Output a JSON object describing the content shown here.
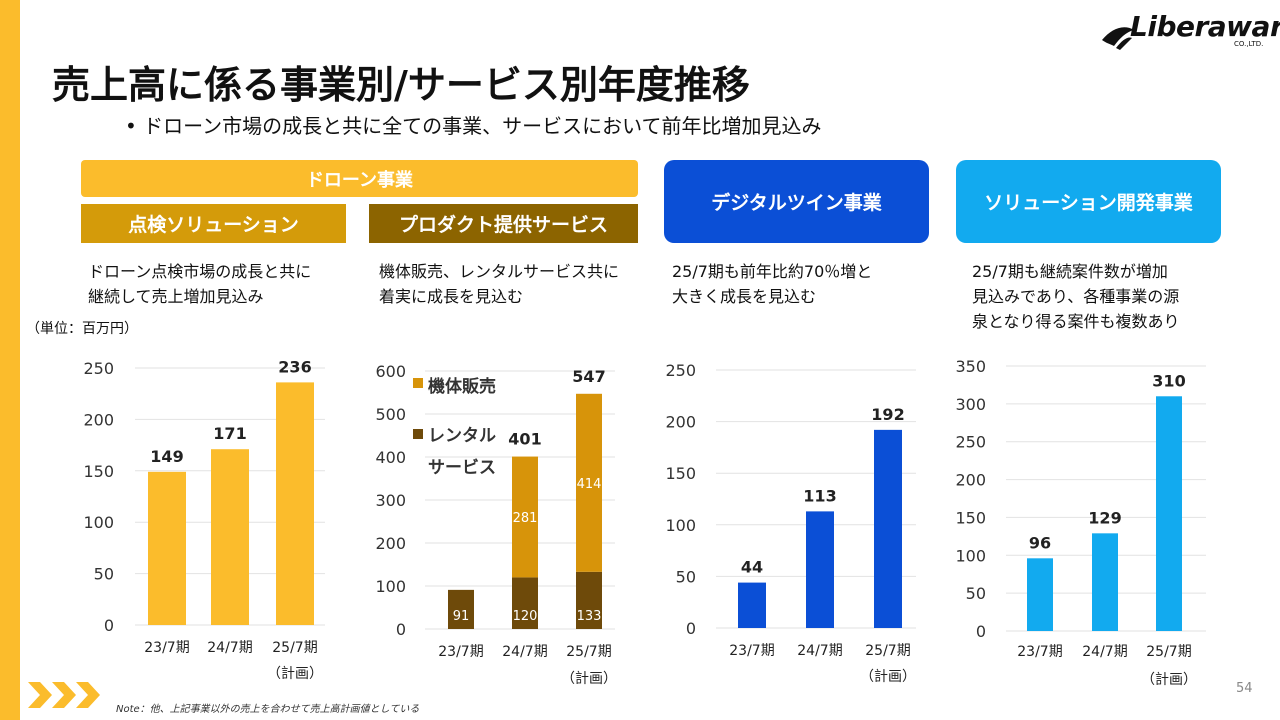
{
  "header": {
    "title": "売上高に係る事業別/サービス別年度推移",
    "subtitle": "•  ドローン市場の成長と共に全ての事業、サービスにおいて前年比増加見込み",
    "logo_text": "Liberaware",
    "logo_sub": "CO.,LTD."
  },
  "segments": {
    "drone": "ドローン事業",
    "inspection": "点検ソリューション",
    "product": "プロダクト提供サービス",
    "digital_twin": "デジタルツイン事業",
    "solution_dev": "ソリューション開発事業"
  },
  "descriptions": {
    "inspection": [
      "ドローン点検市場の成長と共に",
      "継続して売上増加見込み"
    ],
    "product": [
      "機体販売、レンタルサービス共に",
      "着実に成長を見込む"
    ],
    "digital_twin": [
      "25/7期も前年比約70％増と",
      "大きく成長を見込む"
    ],
    "solution_dev": [
      "25/7期も継続案件数が増加",
      "見込みであり、各種事業の源",
      "泉となり得る案件も複数あり"
    ]
  },
  "unit_label": "（単位：百万円）",
  "footnote": "Note：他、上記事業以外の売上を合わせて売上高計画値としている",
  "page_number": "54",
  "colors": {
    "yellow": "#FBBC2C",
    "drone_header": "#FBBC2C",
    "inspection_header": "#D49B0A",
    "product_header": "#8C6400",
    "digital_twin": "#0B4FD6",
    "solution_dev": "#12AAEF",
    "kitai": "#D7940A",
    "rental": "#6E4A0A"
  },
  "chart_data": [
    {
      "type": "bar",
      "name": "点検ソリューション",
      "categories": [
        "23/7期",
        "24/7期",
        "25/7期"
      ],
      "sublabels": [
        "",
        "",
        "（計画）"
      ],
      "values": [
        149,
        171,
        236
      ],
      "ylim": [
        0,
        250
      ],
      "yticks": [
        0,
        50,
        100,
        150,
        200,
        250
      ],
      "color": "#FBBC2C"
    },
    {
      "type": "stacked_bar",
      "name": "プロダクト提供サービス",
      "categories": [
        "23/7期",
        "24/7期",
        "25/7期"
      ],
      "sublabels": [
        "",
        "",
        "（計画）"
      ],
      "series": [
        {
          "name": "レンタルサービス",
          "values": [
            91,
            120,
            133
          ],
          "color": "#6E4A0A"
        },
        {
          "name": "機体販売",
          "values": [
            0,
            281,
            414
          ],
          "color": "#D7940A"
        }
      ],
      "totals": [
        null,
        401,
        547
      ],
      "legend": [
        "機体販売",
        "レンタル",
        "サービス"
      ],
      "ylim": [
        0,
        600
      ],
      "yticks": [
        0,
        100,
        200,
        300,
        400,
        500,
        600
      ]
    },
    {
      "type": "bar",
      "name": "デジタルツイン事業",
      "categories": [
        "23/7期",
        "24/7期",
        "25/7期"
      ],
      "sublabels": [
        "",
        "",
        "（計画）"
      ],
      "values": [
        44,
        113,
        192
      ],
      "ylim": [
        0,
        250
      ],
      "yticks": [
        0,
        50,
        100,
        150,
        200,
        250
      ],
      "color": "#0B4FD6"
    },
    {
      "type": "bar",
      "name": "ソリューション開発事業",
      "categories": [
        "23/7期",
        "24/7期",
        "25/7期"
      ],
      "sublabels": [
        "",
        "",
        "（計画）"
      ],
      "values": [
        96,
        129,
        310
      ],
      "ylim": [
        0,
        350
      ],
      "yticks": [
        0,
        50,
        100,
        150,
        200,
        250,
        300,
        350
      ],
      "color": "#12AAEF"
    }
  ]
}
